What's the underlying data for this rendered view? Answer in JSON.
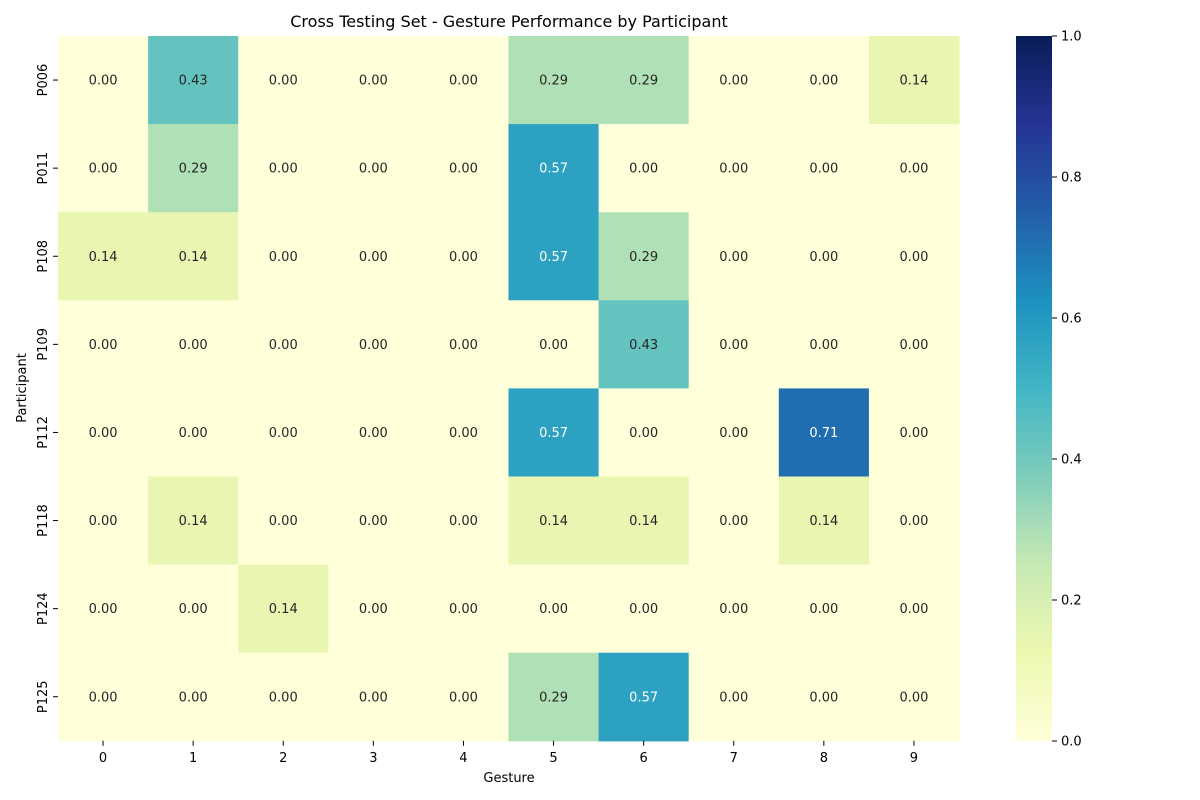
{
  "chart_data": {
    "type": "heatmap",
    "title": "Cross Testing Set - Gesture Performance by Participant",
    "xlabel": "Gesture",
    "ylabel": "Participant",
    "x_categories": [
      "0",
      "1",
      "2",
      "3",
      "4",
      "5",
      "6",
      "7",
      "8",
      "9"
    ],
    "y_categories": [
      "P006",
      "P011",
      "P108",
      "P109",
      "P112",
      "P118",
      "P124",
      "P125"
    ],
    "values": [
      [
        0.0,
        0.43,
        0.0,
        0.0,
        0.0,
        0.29,
        0.29,
        0.0,
        0.0,
        0.14
      ],
      [
        0.0,
        0.29,
        0.0,
        0.0,
        0.0,
        0.57,
        0.0,
        0.0,
        0.0,
        0.0
      ],
      [
        0.14,
        0.14,
        0.0,
        0.0,
        0.0,
        0.57,
        0.29,
        0.0,
        0.0,
        0.0
      ],
      [
        0.0,
        0.0,
        0.0,
        0.0,
        0.0,
        0.0,
        0.43,
        0.0,
        0.0,
        0.0
      ],
      [
        0.0,
        0.0,
        0.0,
        0.0,
        0.0,
        0.57,
        0.0,
        0.0,
        0.71,
        0.0
      ],
      [
        0.0,
        0.14,
        0.0,
        0.0,
        0.0,
        0.14,
        0.14,
        0.0,
        0.14,
        0.0
      ],
      [
        0.0,
        0.0,
        0.14,
        0.0,
        0.0,
        0.0,
        0.0,
        0.0,
        0.0,
        0.0
      ],
      [
        0.0,
        0.0,
        0.0,
        0.0,
        0.0,
        0.29,
        0.57,
        0.0,
        0.0,
        0.0
      ]
    ],
    "value_format": "2 decimals",
    "colormap": "YlGnBu",
    "vmin": 0.0,
    "vmax": 1.0,
    "colorbar_ticks": [
      "0.0",
      "0.2",
      "0.4",
      "0.6",
      "0.8",
      "1.0"
    ],
    "grid": false,
    "colorbar_position": "right"
  }
}
